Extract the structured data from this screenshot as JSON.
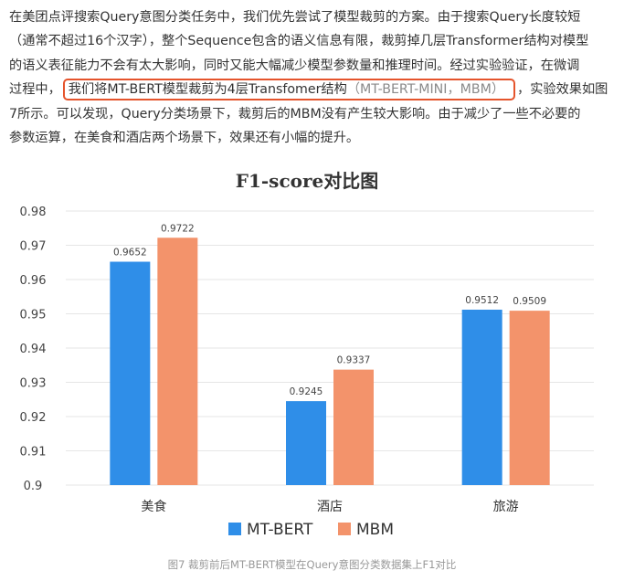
{
  "article": {
    "line1": "在美团点评搜索Query意图分类任务中，我们优先尝试了模型裁剪的方案。由于搜索Query长度较短",
    "line2": "（通常不超过16个汉字），整个Sequence包含的语义信息有限，裁剪掉几层Transformer结构对模型",
    "line3": "的语义表征能力不会有太大影响，同时又能大幅减少模型参数量和推理时间。经过实验验证，在微调",
    "line4_prefix": "过程中，",
    "line4_highlight_main": "我们将MT-BERT模型裁剪为4层Transfomer结构",
    "line4_highlight_paren": "（MT-BERT-MINI，MBM）",
    "line4_suffix": "，实验效果如图",
    "line5": "7所示。可以发现，Query分类场景下，裁剪后的MBM没有产生较大影响。由于减少了一些不必要的",
    "line6": "参数运算，在美食和酒店两个场景下，效果还有小幅的提升。"
  },
  "caption": "图7 裁剪前后MT-BERT模型在Query意图分类数据集上F1对比",
  "colors": {
    "mt_bert": "#2f8ee8",
    "mbm": "#f3936b",
    "highlight_border": "#e5542c",
    "grid": "#e6e6e6"
  },
  "chart_data": {
    "type": "bar",
    "title": "F1-score对比图",
    "categories": [
      "美食",
      "酒店",
      "旅游"
    ],
    "series": [
      {
        "name": "MT-BERT",
        "values": [
          0.9652,
          0.9245,
          0.9512
        ]
      },
      {
        "name": "MBM",
        "values": [
          0.9722,
          0.9337,
          0.9509
        ]
      }
    ],
    "value_labels": [
      [
        "0.9652",
        "0.9245",
        "0.9512"
      ],
      [
        "0.9722",
        "0.9337",
        "0.9509"
      ]
    ],
    "xlabel": "",
    "ylabel": "",
    "ylim": [
      0.9,
      0.98
    ],
    "yticks": [
      "0.98",
      "0.97",
      "0.96",
      "0.95",
      "0.94",
      "0.93",
      "0.92",
      "0.91",
      "0.9"
    ],
    "grid": true,
    "legend": "bottom"
  }
}
